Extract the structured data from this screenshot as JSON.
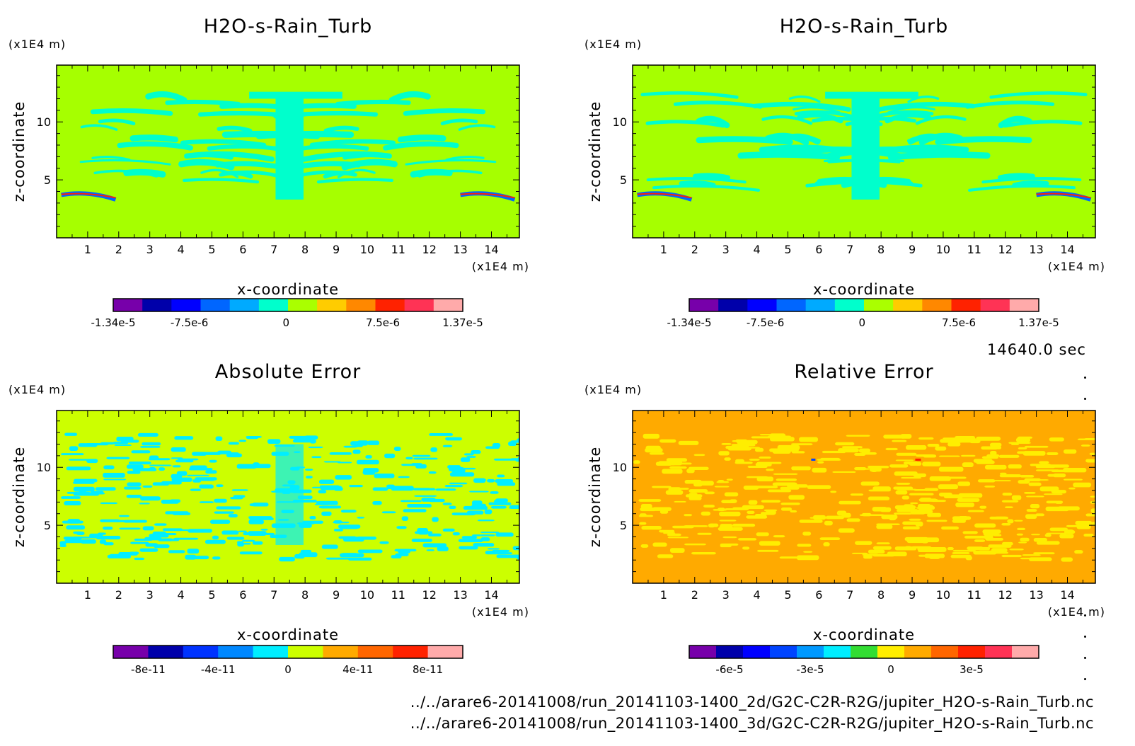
{
  "time_label": "14640.0 sec",
  "file_paths": [
    "../../arare6-20141008/run_20141103-1400_2d/G2C-C2R-R2G/jupiter_H2O-s-Rain_Turb.nc",
    "../../arare6-20141008/run_20141103-1400_3d/G2C-C2R-R2G/jupiter_H2O-s-Rain_Turb.nc"
  ],
  "chart_data": [
    {
      "type": "heatmap",
      "title": "H2O-s-Rain_Turb",
      "xlabel": "x-coordinate",
      "ylabel": "z-coordinate",
      "x_unit": "(x1E4 m)",
      "y_unit": "(x1E4 m)",
      "xlim": [
        0,
        14.9
      ],
      "ylim": [
        0,
        14.9
      ],
      "x_ticks": [
        1,
        2,
        3,
        4,
        5,
        6,
        7,
        8,
        9,
        10,
        11,
        12,
        13,
        14
      ],
      "y_ticks": [
        5,
        10
      ],
      "background_color": "#a6ff00",
      "pattern_color": "#00ffcc",
      "colorbar": {
        "colors": [
          "#7700aa",
          "#0000aa",
          "#0000ff",
          "#0066ff",
          "#00aaff",
          "#00ffcc",
          "#aaff00",
          "#ffcc00",
          "#ff8800",
          "#ff2200",
          "#ff3355",
          "#ffaaaa"
        ],
        "tick_labels": [
          "-1.34e-5",
          "-7.5e-6",
          "0",
          "7.5e-6",
          "1.37e-5"
        ],
        "tick_values": [
          -1.34e-05,
          -7.5e-06,
          0,
          7.5e-06,
          1.37e-05
        ],
        "range": [
          -1.34e-05,
          1.37e-05
        ]
      }
    },
    {
      "type": "heatmap",
      "title": "H2O-s-Rain_Turb",
      "xlabel": "x-coordinate",
      "ylabel": "z-coordinate",
      "x_unit": "(x1E4 m)",
      "y_unit": "(x1E4 m)",
      "xlim": [
        0,
        14.9
      ],
      "ylim": [
        0,
        14.9
      ],
      "x_ticks": [
        1,
        2,
        3,
        4,
        5,
        6,
        7,
        8,
        9,
        10,
        11,
        12,
        13,
        14
      ],
      "y_ticks": [
        5,
        10
      ],
      "background_color": "#a6ff00",
      "pattern_color": "#00ffcc",
      "colorbar": {
        "colors": [
          "#7700aa",
          "#0000aa",
          "#0000ff",
          "#0066ff",
          "#00aaff",
          "#00ffcc",
          "#aaff00",
          "#ffcc00",
          "#ff8800",
          "#ff2200",
          "#ff3355",
          "#ffaaaa"
        ],
        "tick_labels": [
          "-1.34e-5",
          "-7.5e-6",
          "0",
          "7.5e-6",
          "1.37e-5"
        ],
        "tick_values": [
          -1.34e-05,
          -7.5e-06,
          0,
          7.5e-06,
          1.37e-05
        ],
        "range": [
          -1.34e-05,
          1.37e-05
        ]
      }
    },
    {
      "type": "heatmap",
      "title": "Absolute Error",
      "xlabel": "x-coordinate",
      "ylabel": "z-coordinate",
      "x_unit": "(x1E4 m)",
      "y_unit": "(x1E4 m)",
      "xlim": [
        0,
        14.9
      ],
      "ylim": [
        0,
        14.9
      ],
      "x_ticks": [
        1,
        2,
        3,
        4,
        5,
        6,
        7,
        8,
        9,
        10,
        11,
        12,
        13,
        14
      ],
      "y_ticks": [
        5,
        10
      ],
      "background_color": "#ccff00",
      "pattern_color": "#00eeff",
      "colorbar": {
        "colors": [
          "#7700aa",
          "#0000aa",
          "#0033ff",
          "#0088ff",
          "#00eeff",
          "#ccff00",
          "#ffaa00",
          "#ff6600",
          "#ff2200",
          "#ffaaaa"
        ],
        "tick_labels": [
          "-8e-11",
          "-4e-11",
          "0",
          "4e-11",
          "8e-11"
        ],
        "tick_values": [
          -8e-11,
          -4e-11,
          0,
          4e-11,
          8e-11
        ],
        "range": [
          -1e-10,
          1e-10
        ]
      }
    },
    {
      "type": "heatmap",
      "title": "Relative Error",
      "xlabel": "x-coordinate",
      "ylabel": "z-coordinate",
      "x_unit": "(x1E4 m)",
      "y_unit": "(x1E4 m)",
      "xlim": [
        0,
        14.9
      ],
      "ylim": [
        0,
        14.9
      ],
      "x_ticks": [
        1,
        2,
        3,
        4,
        5,
        6,
        7,
        8,
        9,
        10,
        11,
        12,
        13,
        14
      ],
      "y_ticks": [
        5,
        10
      ],
      "background_color": "#ffaa00",
      "pattern_color": "#ffee00",
      "colorbar": {
        "colors": [
          "#7700aa",
          "#0000aa",
          "#0000ff",
          "#0044ff",
          "#0099ff",
          "#00eeff",
          "#33dd33",
          "#ffee00",
          "#ffaa00",
          "#ff6600",
          "#ff2200",
          "#ff3355",
          "#ffaaaa"
        ],
        "tick_labels": [
          "-6e-5",
          "-3e-5",
          "0",
          "3e-5"
        ],
        "tick_values": [
          -6e-05,
          -3e-05,
          0,
          3e-05
        ],
        "range": [
          -7.5e-05,
          5.5e-05
        ]
      }
    }
  ]
}
